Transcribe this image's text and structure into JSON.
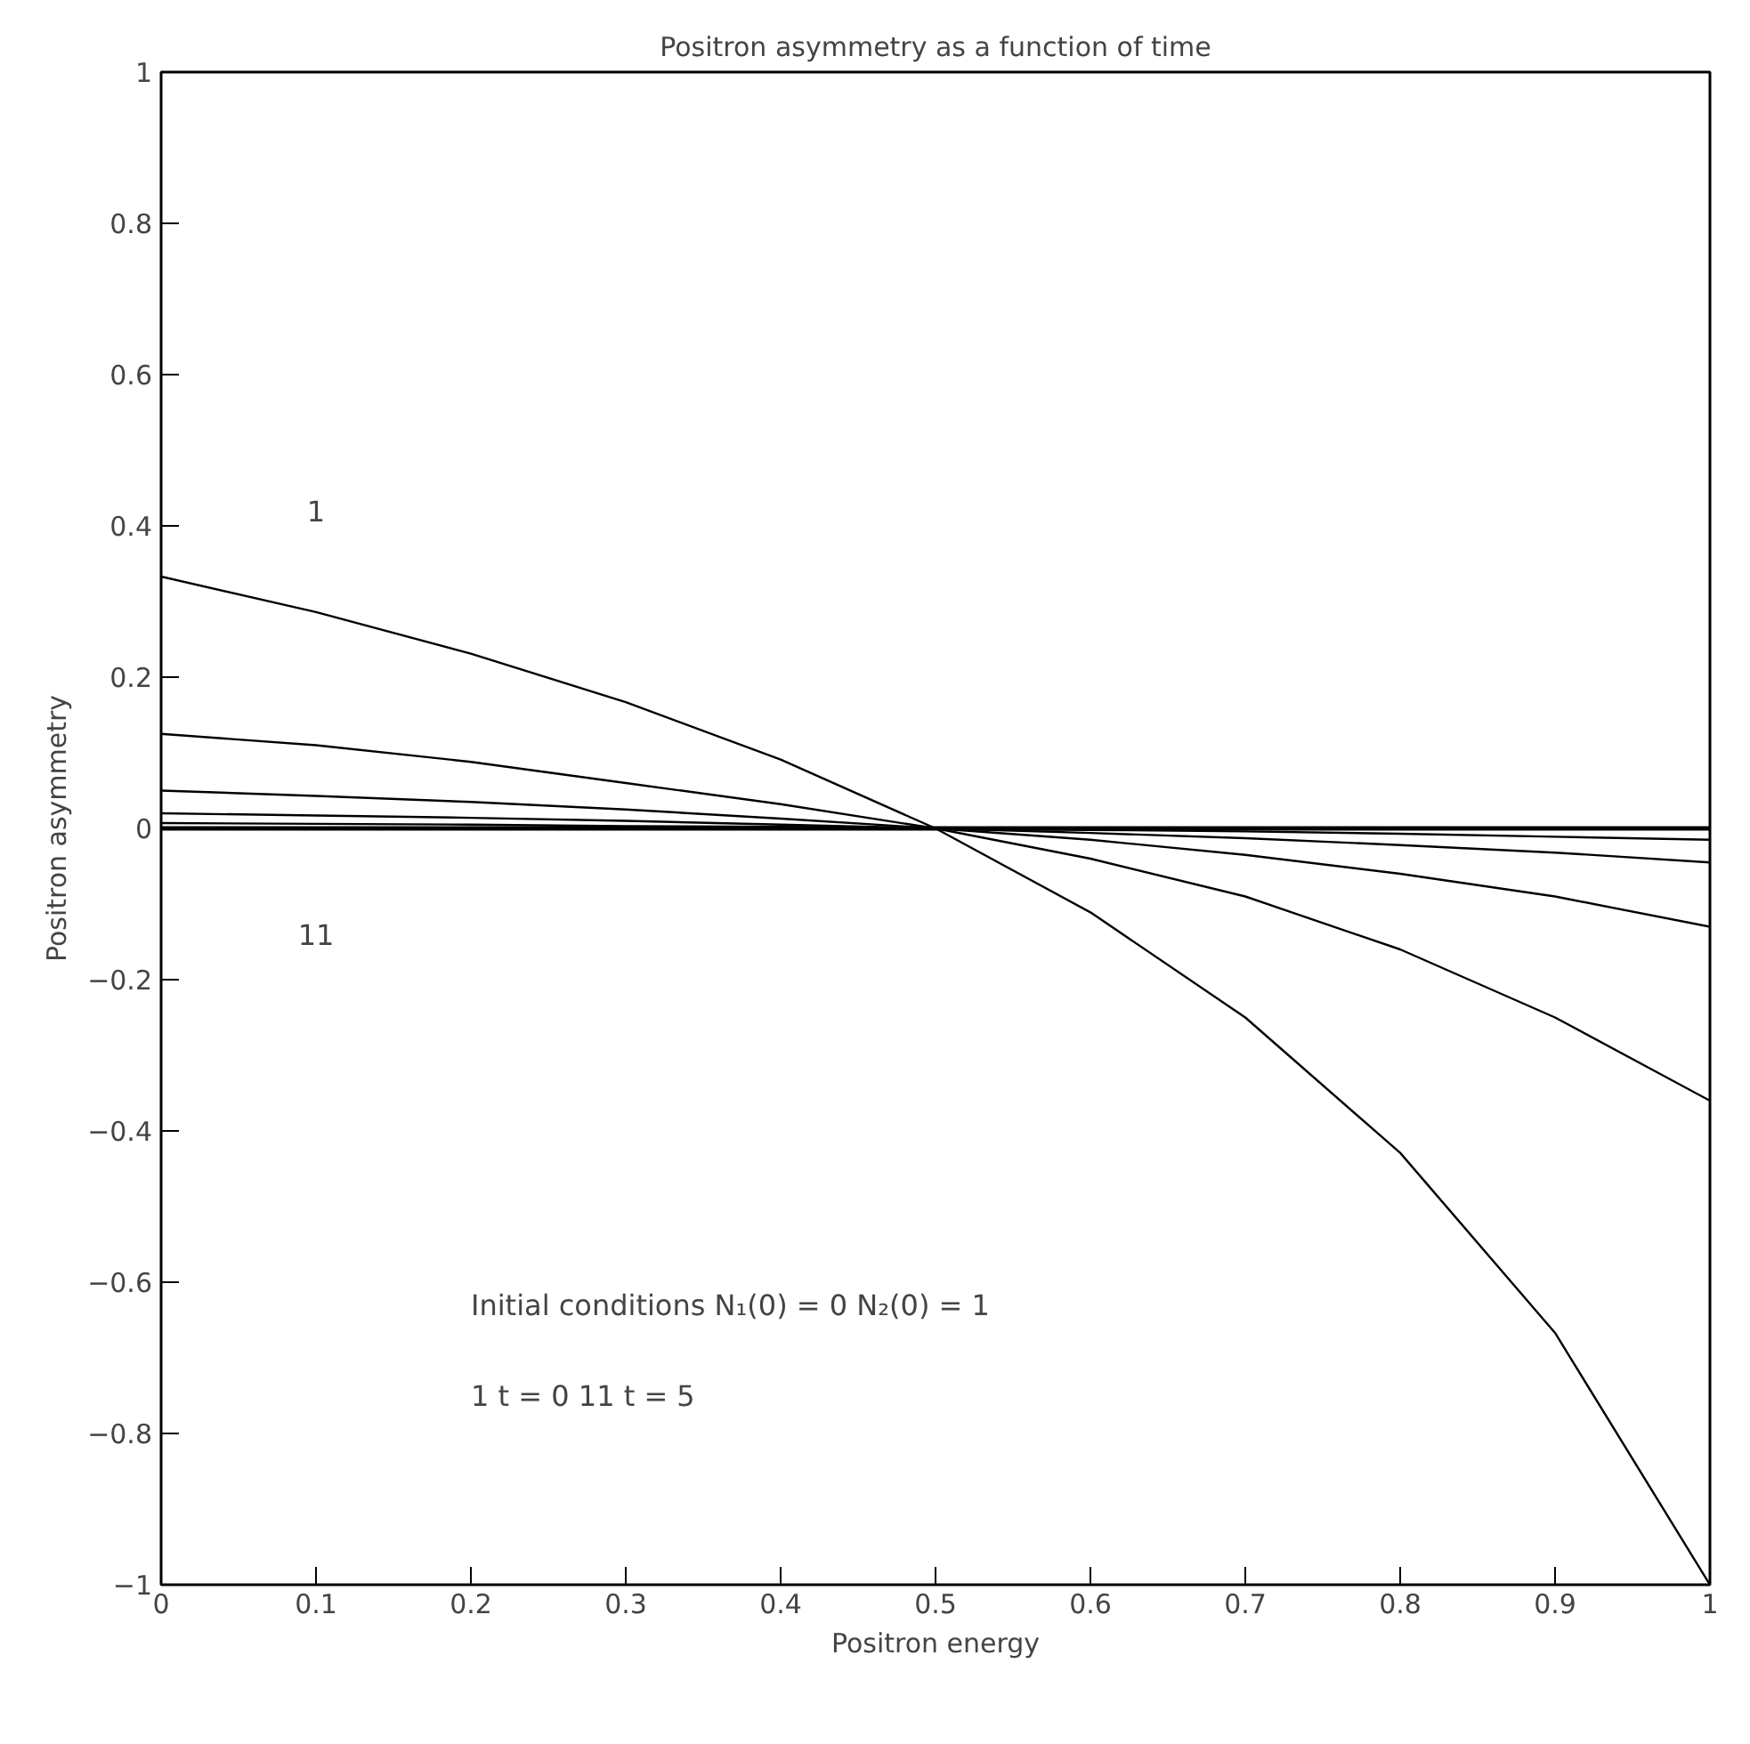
{
  "chart_data": {
    "type": "line",
    "title": "Positron asymmetry as a function of time",
    "xlabel": "Positron energy",
    "ylabel": "Positron asymmetry",
    "x": [
      0,
      0.1,
      0.2,
      0.3,
      0.4,
      0.5,
      0.6,
      0.7,
      0.8,
      0.9,
      1.0
    ],
    "series": [
      {
        "color": "#000000",
        "values": [
          0.333,
          0.286,
          0.231,
          0.167,
          0.091,
          0,
          -0.111,
          -0.25,
          -0.429,
          -0.667,
          -1.0
        ]
      },
      {
        "color": "#000000",
        "values": [
          0.125,
          0.11,
          0.088,
          0.06,
          0.032,
          0,
          -0.04,
          -0.09,
          -0.16,
          -0.25,
          -0.36
        ]
      },
      {
        "color": "#000000",
        "values": [
          0.05,
          0.043,
          0.035,
          0.025,
          0.013,
          0,
          -0.015,
          -0.035,
          -0.06,
          -0.09,
          -0.13
        ]
      },
      {
        "color": "#000000",
        "values": [
          0.02,
          0.017,
          0.014,
          0.01,
          0.005,
          0,
          -0.006,
          -0.013,
          -0.022,
          -0.032,
          -0.045
        ]
      },
      {
        "color": "#000000",
        "values": [
          0.007,
          0.006,
          0.005,
          0.003,
          0.002,
          0,
          -0.002,
          -0.004,
          -0.007,
          -0.011,
          -0.015
        ]
      },
      {
        "color": "#000000",
        "values": [
          0,
          0,
          0,
          0,
          0,
          0,
          0,
          0,
          0,
          0,
          0
        ]
      }
    ],
    "xlim": [
      0,
      1
    ],
    "ylim": [
      -1,
      1
    ],
    "xticks": [
      0,
      0.1,
      0.2,
      0.3,
      0.4,
      0.5,
      0.6,
      0.7,
      0.8,
      0.9,
      1
    ],
    "yticks": [
      -1,
      -0.8,
      -0.6,
      -0.4,
      -0.2,
      0,
      0.2,
      0.4,
      0.6,
      0.8,
      1
    ],
    "grid": false,
    "marker": "none",
    "line_style": "solid",
    "annotations": [
      "1",
      "11",
      "Initial conditions N₁(0) = 0  N₂(0) = 1",
      "1 t = 0  11 t = 5"
    ]
  }
}
